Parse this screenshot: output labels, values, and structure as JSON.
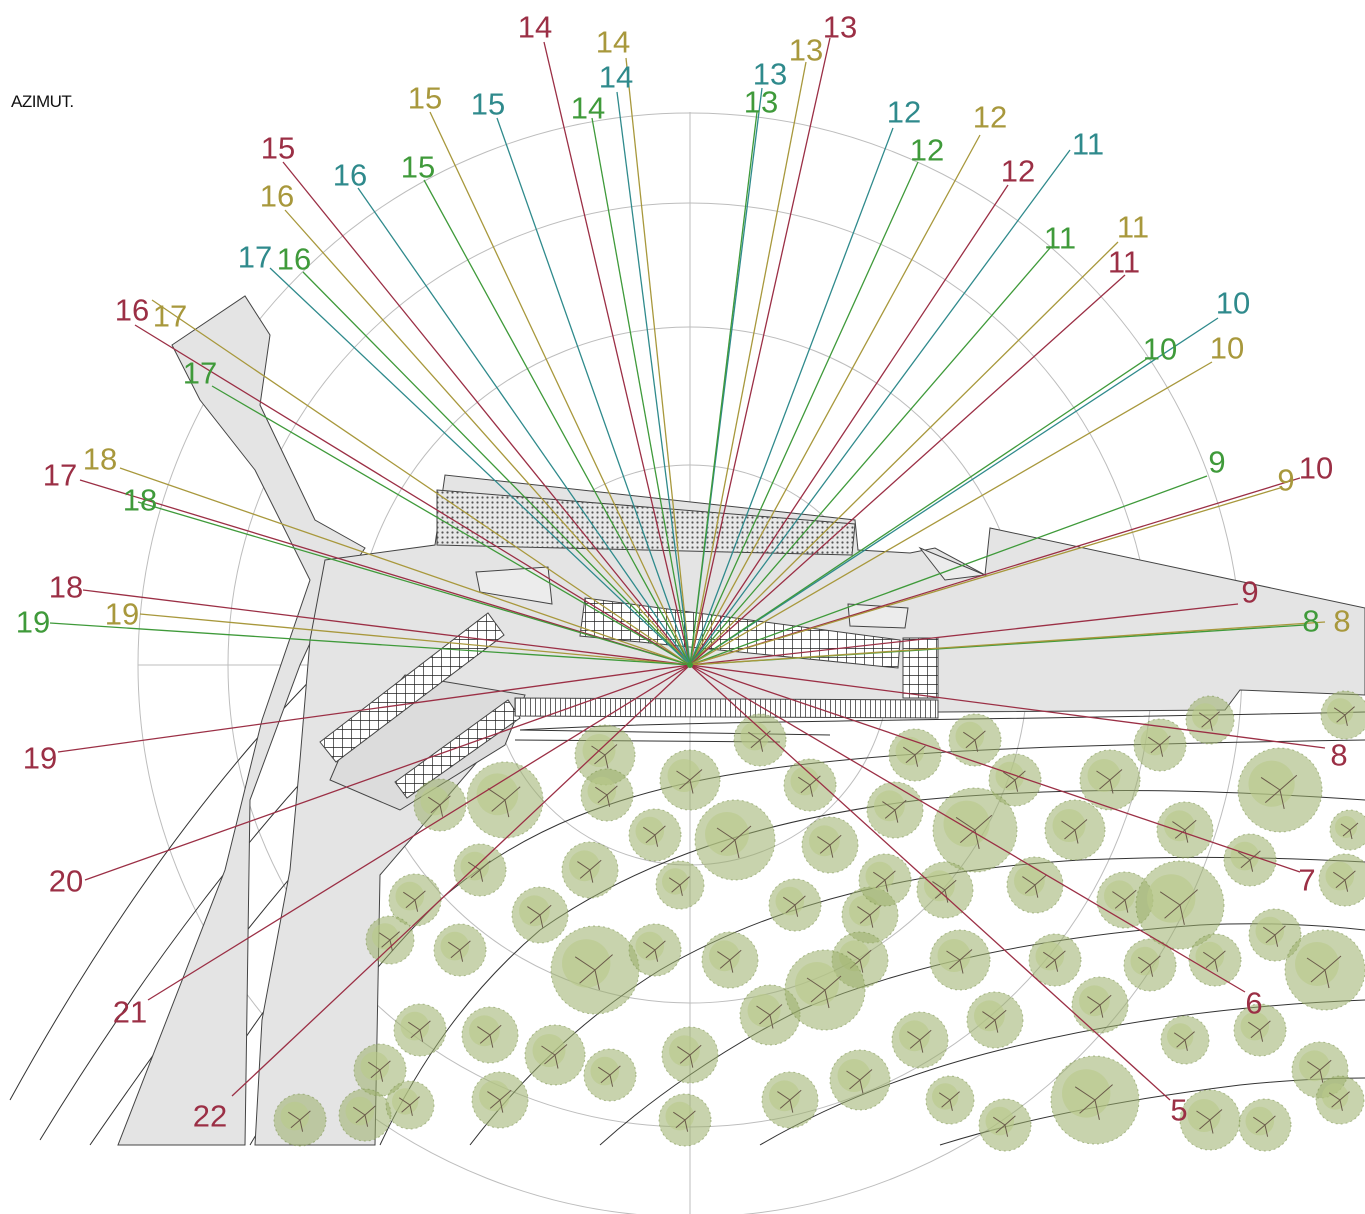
{
  "title": "AZIMUT.",
  "colors": {
    "june": "#9b2f45",
    "equinox": "#a8983c",
    "december": "#3f9a3a",
    "teal": "#2f8a8c",
    "building": "#e4e4e4",
    "tree": "#9aae6a"
  },
  "rays": [
    {
      "label": "14",
      "color": "june"
    },
    {
      "label": "14",
      "color": "equinox"
    },
    {
      "label": "14",
      "color": "teal"
    },
    {
      "label": "14",
      "color": "december"
    },
    {
      "label": "13",
      "color": "june"
    },
    {
      "label": "13",
      "color": "equinox"
    },
    {
      "label": "13",
      "color": "teal"
    },
    {
      "label": "13",
      "color": "december"
    },
    {
      "label": "15",
      "color": "equinox"
    },
    {
      "label": "15",
      "color": "teal"
    },
    {
      "label": "15",
      "color": "june"
    },
    {
      "label": "15",
      "color": "december"
    },
    {
      "label": "16",
      "color": "teal"
    },
    {
      "label": "16",
      "color": "equinox"
    },
    {
      "label": "16",
      "color": "december"
    },
    {
      "label": "16",
      "color": "june"
    },
    {
      "label": "17",
      "color": "teal"
    },
    {
      "label": "17",
      "color": "equinox"
    },
    {
      "label": "17",
      "color": "december"
    },
    {
      "label": "17",
      "color": "june"
    },
    {
      "label": "18",
      "color": "equinox"
    },
    {
      "label": "18",
      "color": "december"
    },
    {
      "label": "18",
      "color": "june"
    },
    {
      "label": "19",
      "color": "equinox"
    },
    {
      "label": "19",
      "color": "december"
    },
    {
      "label": "19",
      "color": "june"
    },
    {
      "label": "20",
      "color": "june"
    },
    {
      "label": "21",
      "color": "june"
    },
    {
      "label": "22",
      "color": "june"
    },
    {
      "label": "12",
      "color": "teal"
    },
    {
      "label": "12",
      "color": "equinox"
    },
    {
      "label": "12",
      "color": "december"
    },
    {
      "label": "12",
      "color": "june"
    },
    {
      "label": "11",
      "color": "teal"
    },
    {
      "label": "11",
      "color": "december"
    },
    {
      "label": "11",
      "color": "equinox"
    },
    {
      "label": "11",
      "color": "june"
    },
    {
      "label": "10",
      "color": "teal"
    },
    {
      "label": "10",
      "color": "december"
    },
    {
      "label": "10",
      "color": "equinox"
    },
    {
      "label": "10",
      "color": "june"
    },
    {
      "label": "9",
      "color": "december"
    },
    {
      "label": "9",
      "color": "equinox"
    },
    {
      "label": "9",
      "color": "june"
    },
    {
      "label": "8",
      "color": "december"
    },
    {
      "label": "8",
      "color": "equinox"
    },
    {
      "label": "8",
      "color": "june"
    },
    {
      "label": "7",
      "color": "june"
    },
    {
      "label": "6",
      "color": "june"
    },
    {
      "label": "5",
      "color": "june"
    }
  ]
}
